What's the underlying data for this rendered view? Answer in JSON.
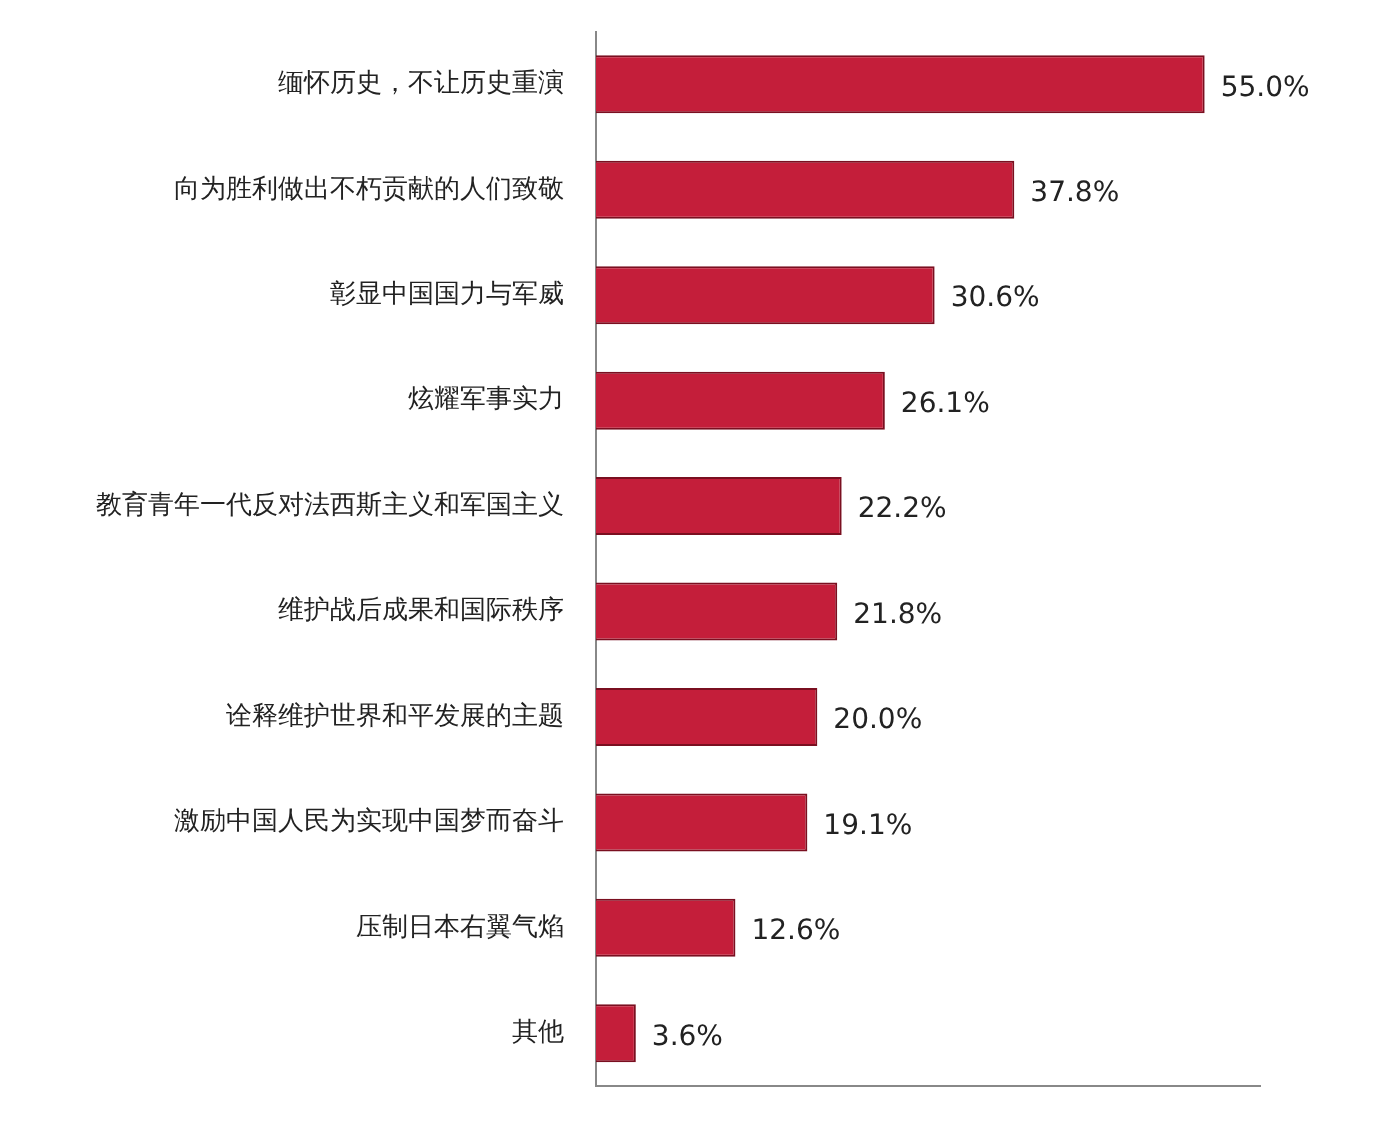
{
  "chart_data": {
    "type": "bar",
    "orientation": "horizontal",
    "categories": [
      "缅怀历史，不让历史重演",
      "向为胜利做出不朽贡献的人们致敬",
      "彰显中国国力与军威",
      "炫耀军事实力",
      "教育青年一代反对法西斯主义和军国主义",
      "维护战后成果和国际秩序",
      "诠释维护世界和平发展的主题",
      "激励中国人民为实现中国梦而奋斗",
      "压制日本右翼气焰",
      "其他"
    ],
    "values": [
      55.0,
      37.8,
      30.6,
      26.1,
      22.2,
      21.8,
      20.0,
      19.1,
      12.6,
      3.6
    ],
    "value_labels": [
      "55.0%",
      "37.8%",
      "30.6%",
      "26.1%",
      "22.2%",
      "21.8%",
      "20.0%",
      "19.1%",
      "12.6%",
      "3.6%"
    ],
    "color": "#c41e3a",
    "grid": false,
    "legend": false
  }
}
